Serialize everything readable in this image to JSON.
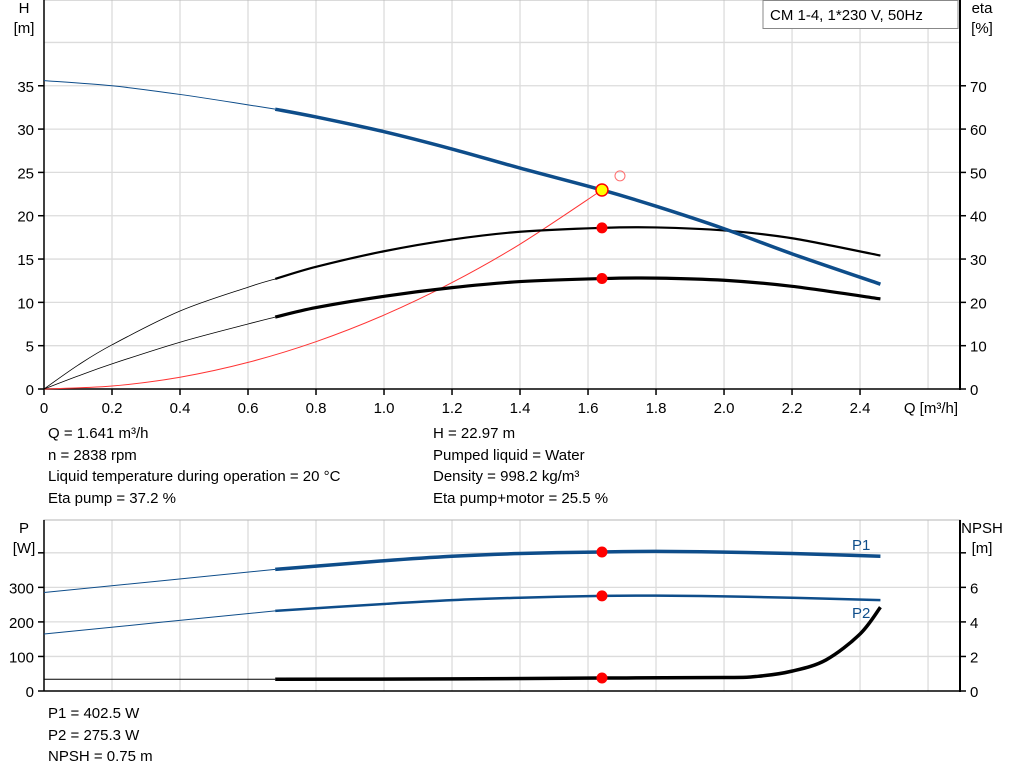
{
  "title_box": "CM 1-4, 1*230 V, 50Hz",
  "chart_data": [
    {
      "type": "line",
      "xlabel": "Q [m³/h]",
      "ylabel_left": [
        "H",
        "[m]"
      ],
      "ylabel_right": [
        "eta",
        "[%]"
      ],
      "xlim": [
        0,
        2.694
      ],
      "ylim_left": [
        0,
        44.9
      ],
      "ylim_right": [
        0,
        89.8
      ],
      "x_ticks": [
        0,
        0.2,
        0.4,
        0.6,
        0.8,
        1.0,
        1.2,
        1.4,
        1.6,
        1.8,
        2.0,
        2.2,
        2.4
      ],
      "x_tick_labels": [
        "0",
        "0.2",
        "0.4",
        "0.6",
        "0.8",
        "1.0",
        "1.2",
        "1.4",
        "1.6",
        "1.8",
        "2.0",
        "2.2",
        "2.4"
      ],
      "y_ticks_left": [
        0,
        5,
        10,
        15,
        20,
        25,
        30,
        35
      ],
      "y_tick_labels_left": [
        "0",
        "5",
        "10",
        "15",
        "20",
        "25",
        "30",
        "35"
      ],
      "y_ticks_right": [
        0,
        10,
        20,
        30,
        40,
        50,
        60,
        70
      ],
      "y_tick_labels_right": [
        "0",
        "10",
        "20",
        "30",
        "40",
        "50",
        "60",
        "70"
      ],
      "grid": true,
      "operating_range_start_q": 0.68,
      "series": [
        {
          "key": "H",
          "axis": "left",
          "color": "#0e4d8a",
          "x": [
            0,
            0.2,
            0.4,
            0.6,
            0.68,
            0.8,
            1.0,
            1.2,
            1.4,
            1.641,
            1.8,
            2.0,
            2.2,
            2.46
          ],
          "y": [
            35.6,
            35.0,
            34.0,
            32.8,
            32.3,
            31.4,
            29.7,
            27.7,
            25.5,
            22.97,
            21.1,
            18.5,
            15.6,
            12.1
          ]
        },
        {
          "key": "eta_pump",
          "axis": "right",
          "color": "#000000",
          "x": [
            0,
            0.1,
            0.2,
            0.4,
            0.6,
            0.68,
            0.8,
            1.0,
            1.2,
            1.4,
            1.641,
            1.8,
            2.0,
            2.2,
            2.46
          ],
          "y": [
            0,
            5.5,
            10.2,
            18,
            23.5,
            25.4,
            28.2,
            31.8,
            34.5,
            36.3,
            37.2,
            37.3,
            36.6,
            34.8,
            30.8
          ]
        },
        {
          "key": "eta_pump_motor",
          "axis": "right",
          "color": "#000000",
          "x": [
            0,
            0.1,
            0.2,
            0.4,
            0.6,
            0.68,
            0.8,
            1.0,
            1.2,
            1.4,
            1.641,
            1.8,
            2.0,
            2.2,
            2.46
          ],
          "y": [
            0,
            3,
            5.8,
            10.8,
            15,
            16.6,
            18.8,
            21.4,
            23.4,
            24.8,
            25.5,
            25.6,
            25.1,
            23.7,
            20.8
          ]
        },
        {
          "key": "system",
          "axis": "left",
          "color": "#ff3333",
          "x": [
            0,
            0.2,
            0.4,
            0.6,
            0.8,
            1.0,
            1.2,
            1.4,
            1.641
          ],
          "y": [
            0,
            0.34,
            1.36,
            3.07,
            5.46,
            8.53,
            12.28,
            16.72,
            22.97
          ]
        }
      ],
      "operating_point": {
        "q": 1.641,
        "h": 22.97,
        "eta_pump": 37.2,
        "eta_pump_motor": 25.5
      },
      "requested_point": {
        "q": 1.694,
        "h": 24.6
      }
    },
    {
      "type": "line",
      "ylabel_left": [
        "P",
        "[W]"
      ],
      "ylabel_right": [
        "NPSH",
        "[m]"
      ],
      "xlim": [
        0,
        2.694
      ],
      "ylim_left": [
        0,
        495
      ],
      "ylim_right": [
        0,
        9.9
      ],
      "y_ticks_left": [
        0,
        100,
        200,
        300,
        400
      ],
      "y_tick_labels_left": [
        "0",
        "100",
        "200",
        "300",
        ""
      ],
      "y_ticks_right": [
        0,
        2,
        4,
        6,
        8
      ],
      "y_tick_labels_right": [
        "0",
        "2",
        "4",
        "6",
        ""
      ],
      "grid": true,
      "series": [
        {
          "key": "P1",
          "name": "P1",
          "axis": "left",
          "color": "#0e4d8a",
          "x": [
            0,
            0.68,
            1.0,
            1.2,
            1.4,
            1.641,
            1.8,
            2.0,
            2.2,
            2.46
          ],
          "y": [
            285,
            352,
            377,
            390,
            398,
            402.5,
            404,
            402,
            398,
            390
          ]
        },
        {
          "key": "P2",
          "name": "P2",
          "axis": "left",
          "color": "#0e4d8a",
          "x": [
            0,
            0.68,
            1.0,
            1.2,
            1.4,
            1.641,
            1.8,
            2.0,
            2.2,
            2.46
          ],
          "y": [
            165,
            232,
            252,
            263,
            270,
            275.3,
            276,
            274,
            270,
            263
          ]
        },
        {
          "key": "NPSH",
          "axis": "right",
          "color": "#000000",
          "x": [
            0,
            0.68,
            1.2,
            1.641,
            2.0,
            2.1,
            2.2,
            2.3,
            2.4,
            2.46
          ],
          "y": [
            0.68,
            0.68,
            0.7,
            0.75,
            0.78,
            0.85,
            1.15,
            1.8,
            3.3,
            4.85
          ]
        }
      ],
      "operating_point": {
        "q": 1.641,
        "p1": 402.5,
        "p2": 275.3,
        "npsh": 0.75
      }
    }
  ],
  "info_left": [
    "Q = 1.641 m³/h",
    "n = 2838 rpm",
    "Liquid temperature during operation = 20 °C",
    "Eta pump = 37.2 %"
  ],
  "info_right": [
    "H = 22.97 m",
    "Pumped liquid = Water",
    "Density = 998.2 kg/m³",
    "Eta pump+motor = 25.5 %"
  ],
  "info_bottom": [
    "P1 = 402.5 W",
    "P2 = 275.3 W",
    "NPSH = 0.75 m"
  ]
}
